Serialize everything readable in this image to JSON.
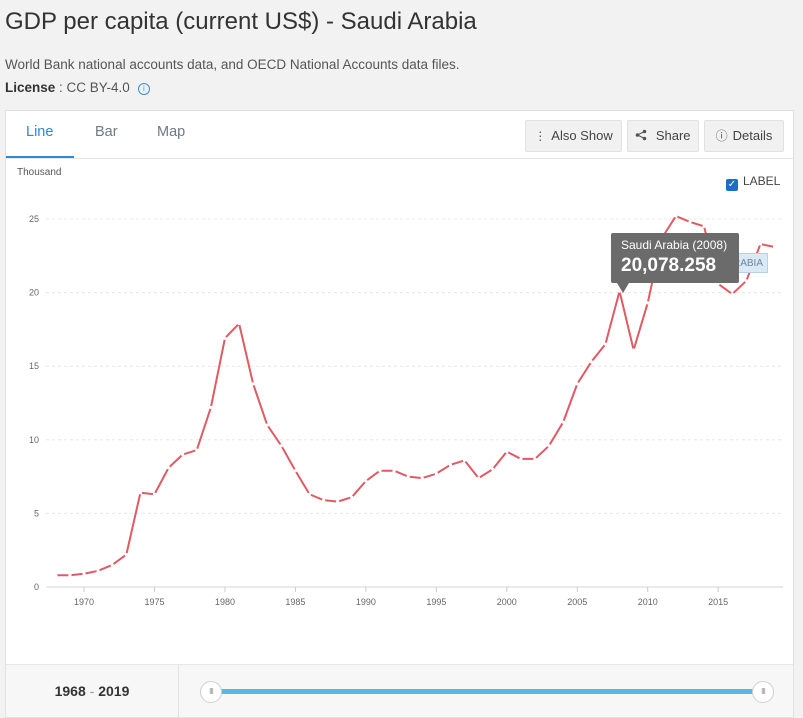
{
  "page": {
    "title": "GDP per capita (current US$) - Saudi Arabia",
    "source": "World Bank national accounts data, and OECD National Accounts data files.",
    "license_label": "License",
    "license_value": " : CC BY-4.0"
  },
  "tabs": [
    {
      "label": "Line",
      "active": true
    },
    {
      "label": "Bar",
      "active": false
    },
    {
      "label": "Map",
      "active": false
    }
  ],
  "toolbar": {
    "also_show": "Also Show",
    "share": "Share",
    "details": "Details"
  },
  "label_toggle": {
    "label": "LABEL",
    "checked": true
  },
  "series_tag": "ARABIA",
  "tooltip": {
    "name": "Saudi Arabia (2008)",
    "value": "20,078.258"
  },
  "range": {
    "start": "1968",
    "separator": " - ",
    "end": "2019"
  },
  "colors": {
    "line": "#e05a63",
    "accent": "#2b8ad8",
    "slider": "#5bb5e6"
  },
  "chart_data": {
    "type": "line",
    "ylabel": "Thousand",
    "ylim": [
      0,
      25
    ],
    "yticks": [
      0,
      5,
      10,
      15,
      20,
      25
    ],
    "xlim": [
      1968,
      2019
    ],
    "xticks": [
      1970,
      1975,
      1980,
      1985,
      1990,
      1995,
      2000,
      2005,
      2010,
      2015
    ],
    "grid": true,
    "series": [
      {
        "name": "Saudi Arabia",
        "x": [
          1968,
          1969,
          1970,
          1971,
          1972,
          1973,
          1974,
          1975,
          1976,
          1977,
          1978,
          1979,
          1980,
          1981,
          1982,
          1983,
          1984,
          1985,
          1986,
          1987,
          1988,
          1989,
          1990,
          1991,
          1992,
          1993,
          1994,
          1995,
          1996,
          1997,
          1998,
          1999,
          2000,
          2001,
          2002,
          2003,
          2004,
          2005,
          2006,
          2007,
          2008,
          2009,
          2010,
          2011,
          2012,
          2013,
          2014,
          2015,
          2016,
          2017,
          2018,
          2019
        ],
        "values": [
          0.8,
          0.8,
          0.9,
          1.1,
          1.5,
          2.2,
          6.4,
          6.3,
          8.1,
          9.0,
          9.3,
          12.2,
          16.9,
          17.9,
          13.8,
          11.0,
          9.6,
          7.9,
          6.3,
          5.9,
          5.8,
          6.1,
          7.2,
          7.9,
          7.9,
          7.5,
          7.4,
          7.7,
          8.3,
          8.6,
          7.4,
          8.0,
          9.2,
          8.7,
          8.7,
          9.6,
          11.2,
          13.8,
          15.3,
          16.5,
          20.1,
          16.1,
          19.3,
          23.7,
          25.2,
          24.8,
          24.5,
          20.6,
          19.9,
          20.8,
          23.3,
          23.1
        ]
      }
    ]
  }
}
